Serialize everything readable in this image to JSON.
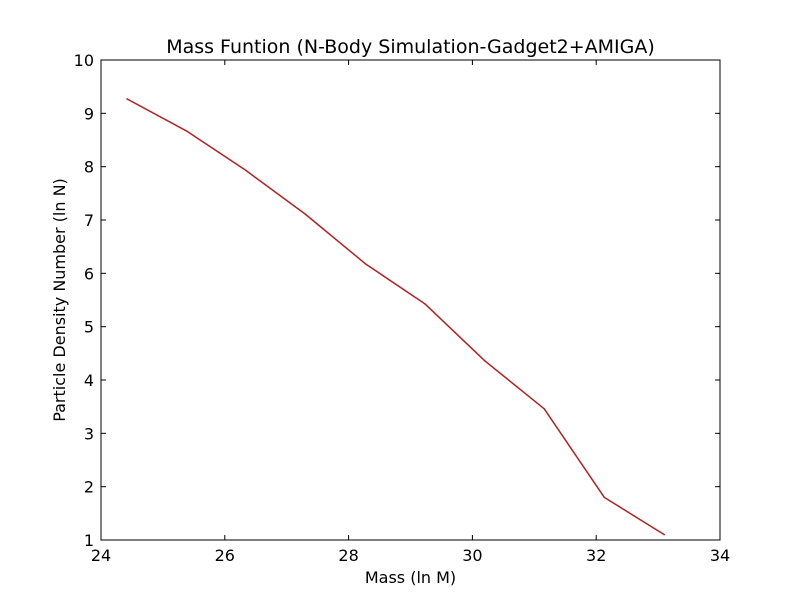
{
  "chart_data": {
    "type": "line",
    "title": "Mass Funtion (N-Body Simulation-Gadget2+AMIGA)",
    "xlabel": "Mass (ln M)",
    "ylabel": "Particle Density Number (ln N)",
    "xlim": [
      24,
      34
    ],
    "ylim": [
      1,
      10
    ],
    "xticks": [
      24,
      26,
      28,
      30,
      32,
      34
    ],
    "yticks": [
      1,
      2,
      3,
      4,
      5,
      6,
      7,
      8,
      9,
      10
    ],
    "grid": false,
    "legend": "none",
    "series": [
      {
        "color": "#b22222",
        "x": [
          24.42,
          25.38,
          26.34,
          27.3,
          28.27,
          29.23,
          30.2,
          31.16,
          32.13,
          33.1
        ],
        "y": [
          9.27,
          8.67,
          7.93,
          7.11,
          6.18,
          5.43,
          4.36,
          3.46,
          1.8,
          1.1
        ]
      }
    ]
  }
}
